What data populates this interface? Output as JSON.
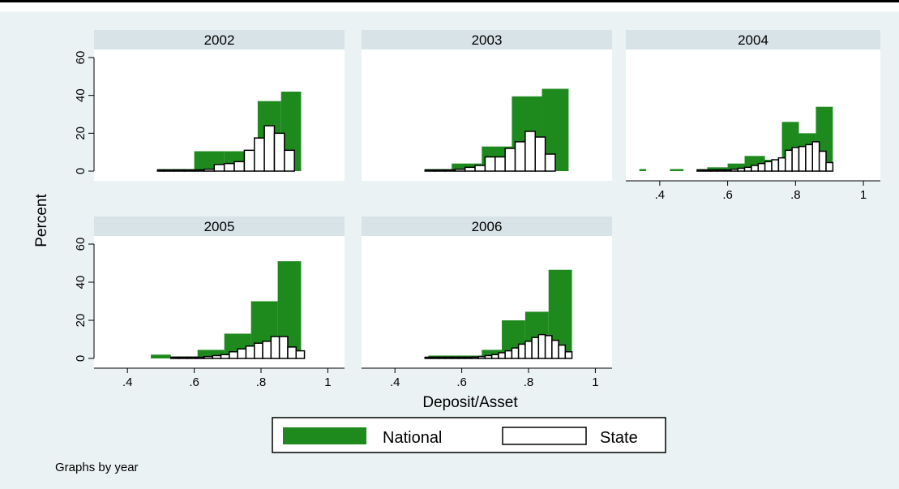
{
  "colors": {
    "background": "#eaf2f3",
    "plot_background": "#ffffff",
    "strip": "#d8e3e8",
    "national": "#1e8a1e",
    "state_fill": "#ffffff",
    "state_edge": "#000000"
  },
  "chart_data": {
    "type": "bar",
    "subtype": "overlaid histograms by panel",
    "ylabel": "Percent",
    "xlabel": "Deposit/Asset",
    "note": "Graphs by year",
    "legend": {
      "position": "bottom-center",
      "entries": [
        "National",
        "State"
      ]
    },
    "xlim": [
      0.3,
      1.05
    ],
    "ylim": [
      0,
      60
    ],
    "x_ticks": [
      ".4",
      ".6",
      ".8",
      "1"
    ],
    "y_ticks": [
      "0",
      "20",
      "40",
      "60"
    ],
    "grid": false,
    "panels": [
      {
        "year": "2002",
        "show_x_ticks": false,
        "show_y_ticks": true,
        "national": [
          [
            0.49,
            0.6,
            0.3
          ],
          [
            0.6,
            0.69,
            10.5
          ],
          [
            0.69,
            0.79,
            10.5
          ],
          [
            0.79,
            0.86,
            37
          ],
          [
            0.86,
            0.92,
            42
          ]
        ],
        "state": [
          [
            0.49,
            0.51,
            0.2
          ],
          [
            0.51,
            0.54,
            0.2
          ],
          [
            0.54,
            0.57,
            0.2
          ],
          [
            0.57,
            0.6,
            0.2
          ],
          [
            0.6,
            0.63,
            0.3
          ],
          [
            0.63,
            0.66,
            1
          ],
          [
            0.66,
            0.69,
            3.5
          ],
          [
            0.69,
            0.72,
            4
          ],
          [
            0.72,
            0.75,
            5
          ],
          [
            0.75,
            0.78,
            11
          ],
          [
            0.78,
            0.81,
            17.5
          ],
          [
            0.81,
            0.84,
            24
          ],
          [
            0.84,
            0.87,
            20
          ],
          [
            0.87,
            0.9,
            11
          ]
        ]
      },
      {
        "year": "2003",
        "show_x_ticks": false,
        "show_y_ticks": false,
        "national": [
          [
            0.49,
            0.57,
            0.3
          ],
          [
            0.57,
            0.66,
            4
          ],
          [
            0.66,
            0.75,
            13
          ],
          [
            0.75,
            0.84,
            39.5
          ],
          [
            0.84,
            0.92,
            43.5
          ]
        ],
        "state": [
          [
            0.49,
            0.52,
            0.2
          ],
          [
            0.52,
            0.55,
            0.2
          ],
          [
            0.55,
            0.58,
            0.5
          ],
          [
            0.58,
            0.61,
            1
          ],
          [
            0.61,
            0.64,
            2
          ],
          [
            0.64,
            0.67,
            3
          ],
          [
            0.67,
            0.7,
            7.5
          ],
          [
            0.7,
            0.73,
            7.5
          ],
          [
            0.73,
            0.76,
            12
          ],
          [
            0.76,
            0.79,
            15.5
          ],
          [
            0.79,
            0.82,
            21
          ],
          [
            0.82,
            0.85,
            18
          ],
          [
            0.85,
            0.88,
            9
          ]
        ]
      },
      {
        "year": "2004",
        "show_x_ticks": true,
        "show_y_ticks": false,
        "national": [
          [
            0.34,
            0.36,
            0.5
          ],
          [
            0.43,
            0.47,
            0.5
          ],
          [
            0.51,
            0.54,
            0.5
          ],
          [
            0.54,
            0.6,
            2
          ],
          [
            0.6,
            0.65,
            4
          ],
          [
            0.65,
            0.71,
            8
          ],
          [
            0.71,
            0.76,
            6
          ],
          [
            0.76,
            0.81,
            26
          ],
          [
            0.81,
            0.86,
            20
          ],
          [
            0.86,
            0.91,
            34
          ]
        ],
        "state": [
          [
            0.51,
            0.53,
            0.2
          ],
          [
            0.53,
            0.55,
            0.2
          ],
          [
            0.55,
            0.57,
            0.3
          ],
          [
            0.57,
            0.59,
            0.5
          ],
          [
            0.59,
            0.61,
            0.5
          ],
          [
            0.61,
            0.63,
            1
          ],
          [
            0.63,
            0.65,
            1.5
          ],
          [
            0.65,
            0.67,
            2
          ],
          [
            0.67,
            0.69,
            3
          ],
          [
            0.69,
            0.71,
            4
          ],
          [
            0.71,
            0.73,
            5
          ],
          [
            0.73,
            0.75,
            6
          ],
          [
            0.75,
            0.77,
            7
          ],
          [
            0.77,
            0.79,
            11
          ],
          [
            0.79,
            0.81,
            12.5
          ],
          [
            0.81,
            0.83,
            13
          ],
          [
            0.83,
            0.85,
            14
          ],
          [
            0.85,
            0.87,
            15.5
          ],
          [
            0.87,
            0.89,
            10.5
          ],
          [
            0.89,
            0.91,
            4.5
          ]
        ]
      },
      {
        "year": "2005",
        "show_x_ticks": true,
        "show_y_ticks": true,
        "national": [
          [
            0.47,
            0.53,
            2
          ],
          [
            0.53,
            0.61,
            1
          ],
          [
            0.61,
            0.69,
            4.5
          ],
          [
            0.69,
            0.77,
            13
          ],
          [
            0.77,
            0.85,
            30
          ],
          [
            0.85,
            0.92,
            51
          ]
        ],
        "state": [
          [
            0.53,
            0.555,
            0.3
          ],
          [
            0.555,
            0.58,
            0.3
          ],
          [
            0.58,
            0.605,
            0.3
          ],
          [
            0.605,
            0.63,
            0.5
          ],
          [
            0.63,
            0.655,
            1
          ],
          [
            0.655,
            0.68,
            1.5
          ],
          [
            0.68,
            0.705,
            2
          ],
          [
            0.705,
            0.73,
            3.5
          ],
          [
            0.73,
            0.755,
            5
          ],
          [
            0.755,
            0.78,
            6.5
          ],
          [
            0.78,
            0.805,
            8
          ],
          [
            0.805,
            0.83,
            9
          ],
          [
            0.83,
            0.855,
            11.5
          ],
          [
            0.855,
            0.88,
            11.5
          ],
          [
            0.88,
            0.905,
            6
          ],
          [
            0.905,
            0.93,
            4
          ]
        ]
      },
      {
        "year": "2006",
        "show_x_ticks": true,
        "show_y_ticks": false,
        "national": [
          [
            0.5,
            0.59,
            1.5
          ],
          [
            0.59,
            0.66,
            1.5
          ],
          [
            0.66,
            0.72,
            4.5
          ],
          [
            0.72,
            0.79,
            20
          ],
          [
            0.79,
            0.86,
            24.5
          ],
          [
            0.86,
            0.93,
            46.5
          ]
        ],
        "state": [
          [
            0.49,
            0.51,
            0.3
          ],
          [
            0.51,
            0.53,
            0.3
          ],
          [
            0.53,
            0.55,
            0.3
          ],
          [
            0.55,
            0.57,
            0.3
          ],
          [
            0.57,
            0.59,
            0.5
          ],
          [
            0.59,
            0.61,
            0.5
          ],
          [
            0.61,
            0.63,
            0.5
          ],
          [
            0.63,
            0.65,
            0.7
          ],
          [
            0.65,
            0.67,
            1
          ],
          [
            0.67,
            0.69,
            1.5
          ],
          [
            0.69,
            0.71,
            2
          ],
          [
            0.71,
            0.73,
            3
          ],
          [
            0.73,
            0.75,
            4
          ],
          [
            0.75,
            0.77,
            5.5
          ],
          [
            0.77,
            0.79,
            7.5
          ],
          [
            0.79,
            0.81,
            9
          ],
          [
            0.81,
            0.83,
            11
          ],
          [
            0.83,
            0.85,
            12.5
          ],
          [
            0.85,
            0.87,
            12
          ],
          [
            0.87,
            0.89,
            9.5
          ],
          [
            0.89,
            0.91,
            7
          ],
          [
            0.91,
            0.93,
            3.5
          ]
        ]
      }
    ]
  }
}
